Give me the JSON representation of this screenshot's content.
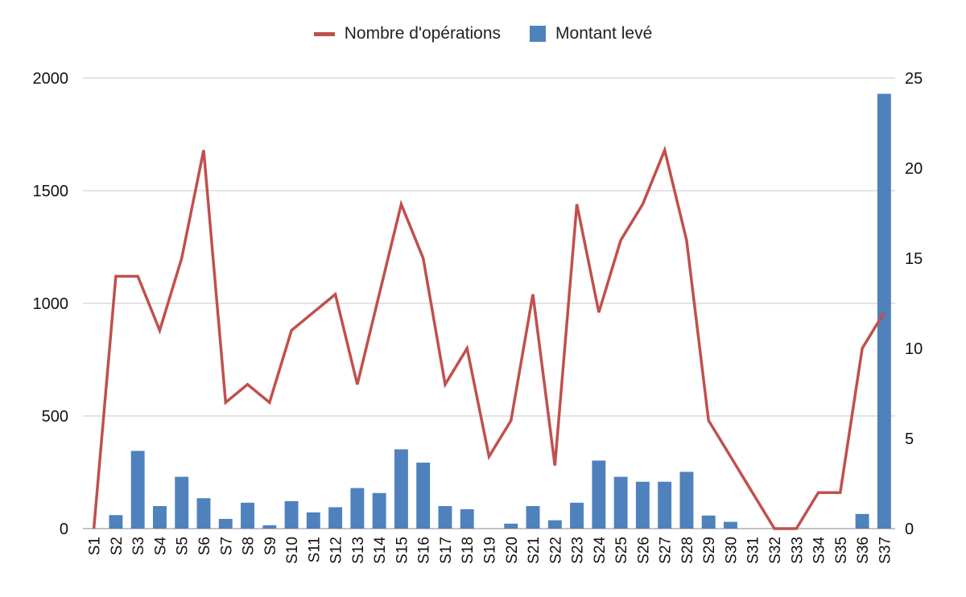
{
  "chart_data": {
    "type": "bar",
    "categories": [
      "S1",
      "S2",
      "S3",
      "S4",
      "S5",
      "S6",
      "S7",
      "S8",
      "S9",
      "S10",
      "S11",
      "S12",
      "S13",
      "S14",
      "S15",
      "S16",
      "S17",
      "S18",
      "S19",
      "S20",
      "S21",
      "S22",
      "S23",
      "S24",
      "S25",
      "S26",
      "S27",
      "S28",
      "S29",
      "S30",
      "S31",
      "S32",
      "S33",
      "S34",
      "S35",
      "S36",
      "S37"
    ],
    "series": [
      {
        "name": "Montant levé",
        "type": "bar",
        "axis": "left",
        "color": "#4f81bd",
        "values": [
          0,
          60,
          345,
          100,
          230,
          135,
          43,
          115,
          15,
          122,
          72,
          95,
          180,
          158,
          352,
          293,
          100,
          86,
          0,
          22,
          100,
          37,
          115,
          302,
          230,
          208,
          208,
          252,
          58,
          30,
          0,
          0,
          0,
          0,
          0,
          65,
          1930
        ]
      },
      {
        "name": "Nombre d'opérations",
        "type": "line",
        "axis": "right",
        "color": "#c0504d",
        "values": [
          0,
          14,
          14,
          11,
          15,
          21,
          7,
          8,
          7,
          11,
          12,
          13,
          8,
          13,
          18,
          15,
          8,
          10,
          4,
          6,
          13,
          3.5,
          18,
          12,
          16,
          18,
          21,
          16,
          6,
          4,
          2,
          0,
          0,
          2,
          2,
          10,
          12
        ]
      }
    ],
    "y_left": {
      "min": 0,
      "max": 2000,
      "ticks": [
        0,
        500,
        1000,
        1500,
        2000
      ]
    },
    "y_right": {
      "min": 0,
      "max": 25,
      "ticks": [
        0,
        5,
        10,
        15,
        20,
        25
      ]
    },
    "grid": true,
    "legend_position": "top-center",
    "title": "",
    "xlabel": "",
    "ylabel": ""
  }
}
